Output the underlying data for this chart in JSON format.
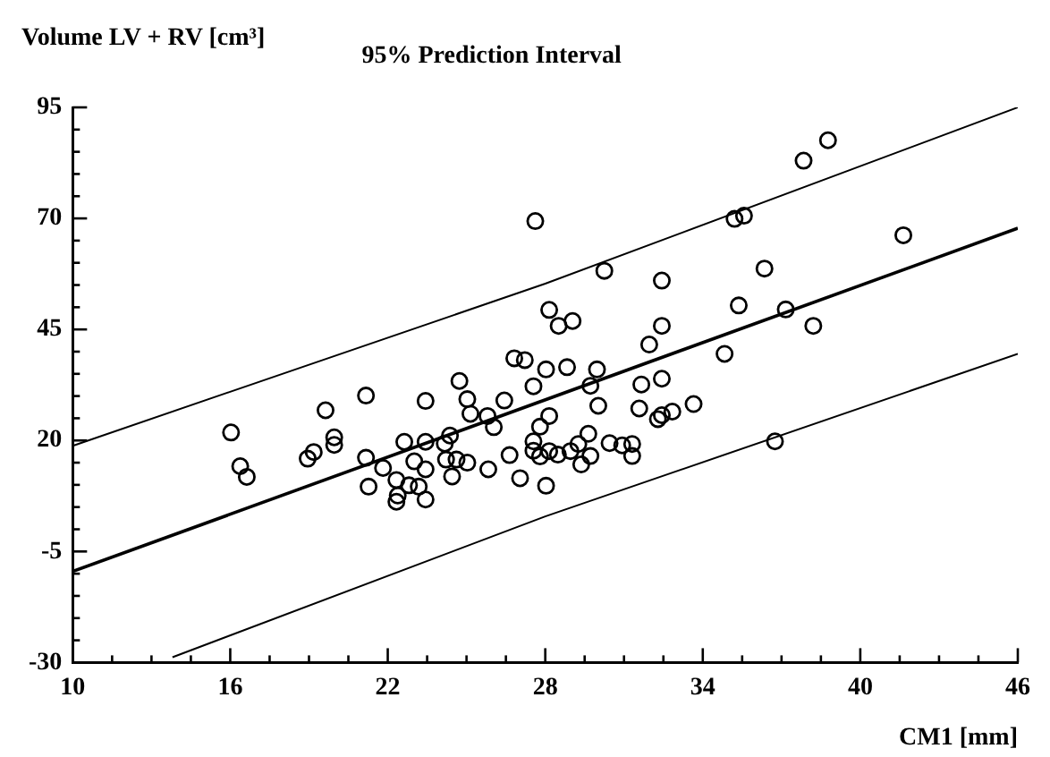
{
  "chart_data": {
    "type": "scatter",
    "title": "95% Prediction Interval",
    "ylabel": "Volume LV + RV [cm³]",
    "xlabel": "CM1 [mm]",
    "xlim": [
      10,
      46
    ],
    "xticks": [
      10,
      {
        "value": 11.5,
        "label": null
      },
      {
        "value": 13,
        "label": null
      },
      {
        "value": 14.5,
        "label": null
      },
      16,
      {
        "value": 17.5,
        "label": null
      },
      {
        "value": 19,
        "label": null
      },
      {
        "value": 20.5,
        "label": null
      },
      22,
      {
        "value": 23.5,
        "label": null
      },
      {
        "value": 25,
        "label": null
      },
      {
        "value": 26.5,
        "label": null
      },
      28,
      {
        "value": 29.5,
        "label": null
      },
      {
        "value": 31,
        "label": null
      },
      {
        "value": 32.5,
        "label": null
      },
      34,
      {
        "value": 35.5,
        "label": null
      },
      {
        "value": 37,
        "label": null
      },
      {
        "value": 38.5,
        "label": null
      },
      40,
      {
        "value": 41.5,
        "label": null
      },
      {
        "value": 43,
        "label": null
      },
      {
        "value": 44.5,
        "label": null
      },
      46
    ],
    "ylim": [
      -30,
      95
    ],
    "yticks": [
      -30,
      {
        "value": -25,
        "label": null
      },
      {
        "value": -20,
        "label": null
      },
      {
        "value": -15,
        "label": null
      },
      {
        "value": -10,
        "label": null
      },
      -5,
      {
        "value": 0,
        "label": null
      },
      {
        "value": 5,
        "label": null
      },
      {
        "value": 10,
        "label": null
      },
      {
        "value": 15,
        "label": null
      },
      20,
      {
        "value": 25,
        "label": null
      },
      {
        "value": 30,
        "label": null
      },
      {
        "value": 35,
        "label": null
      },
      {
        "value": 40,
        "label": null
      },
      45,
      {
        "value": 50,
        "label": null
      },
      {
        "value": 55,
        "label": null
      },
      {
        "value": 60,
        "label": null
      },
      {
        "value": 65,
        "label": null
      },
      70,
      {
        "value": 75,
        "label": null
      },
      {
        "value": 80,
        "label": null
      },
      {
        "value": 85,
        "label": null
      },
      {
        "value": 90,
        "label": null
      },
      95
    ],
    "grid": false,
    "legend": false,
    "series": [
      {
        "type": "scatter",
        "marker": "circle",
        "color": "#000000",
        "x": [
          27.62,
          19.63,
          21.17,
          23.44,
          24.73,
          25.03,
          26.82,
          27.22,
          26.44,
          27.55,
          28.03,
          25.15,
          25.8,
          38.77,
          37.84,
          35.21,
          35.57,
          41.64,
          30.25,
          32.44,
          36.35,
          28.15,
          28.51,
          29.04,
          35.37,
          37.16,
          38.21,
          32.44,
          31.96,
          34.83,
          28.83,
          29.97,
          29.72,
          31.66,
          32.44,
          28.15,
          30.02,
          31.58,
          32.44,
          32.84,
          33.65,
          16.03,
          16.38,
          16.63,
          18.95,
          19.18,
          19.96,
          19.96,
          21.17,
          21.27,
          21.82,
          22.33,
          22.38,
          22.33,
          22.63,
          22.81,
          23.01,
          23.18,
          23.44,
          23.44,
          23.44,
          24.17,
          24.37,
          24.22,
          24.62,
          24.45,
          25.03,
          25.83,
          26.04,
          26.64,
          27.04,
          27.55,
          27.55,
          27.8,
          27.8,
          28.03,
          32.29,
          28.15,
          28.48,
          28.96,
          29.26,
          29.37,
          29.64,
          29.72,
          30.45,
          30.93,
          31.31,
          31.31,
          36.75
        ],
        "values": [
          69.4,
          26.8,
          30.1,
          28.9,
          33.4,
          29.3,
          38.5,
          38.1,
          29,
          32.2,
          36,
          26,
          25.5,
          87.6,
          83,
          69.9,
          70.6,
          66.2,
          58.2,
          56,
          58.7,
          49.4,
          45.8,
          46.9,
          50.4,
          49.5,
          45.8,
          45.8,
          41.6,
          39.5,
          36.5,
          36,
          32.3,
          32.6,
          33.9,
          25.5,
          27.8,
          27.2,
          25.7,
          26.5,
          28.2,
          21.8,
          14.2,
          11.8,
          15.9,
          17.4,
          20.7,
          19,
          16.1,
          9.6,
          13.8,
          11.1,
          7.6,
          6.2,
          19.7,
          9.9,
          15.3,
          9.6,
          19.7,
          13.5,
          6.7,
          19.3,
          21.1,
          15.7,
          15.7,
          11.9,
          15,
          13.5,
          23,
          16.7,
          11.5,
          19.8,
          17.7,
          23.1,
          16.4,
          9.8,
          24.8,
          17.6,
          16.8,
          17.6,
          19.2,
          14.6,
          21.5,
          16.5,
          19.4,
          18.9,
          19.2,
          16.5,
          19.8
        ]
      },
      {
        "type": "line",
        "marker": "none",
        "color": "#000000",
        "x": [
          10,
          46
        ],
        "values": [
          -9.5,
          67.8
        ]
      },
      {
        "type": "line",
        "marker": "none",
        "color": "#000000",
        "x": [
          10,
          28,
          46
        ],
        "values": [
          18.8,
          55.3,
          95
        ]
      },
      {
        "type": "line",
        "marker": "none",
        "color": "#000000",
        "x": [
          13.8,
          28,
          46
        ],
        "values": [
          -28.8,
          2.9,
          39.5
        ]
      }
    ]
  }
}
